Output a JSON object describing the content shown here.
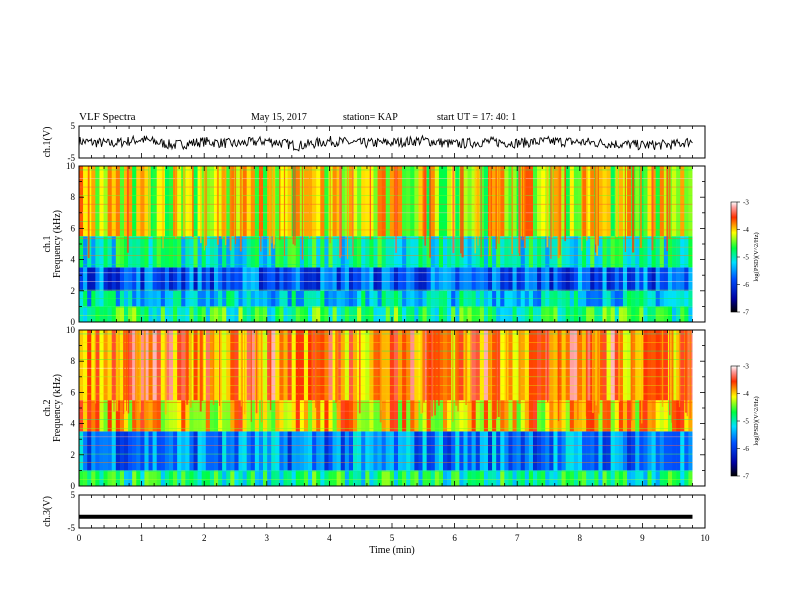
{
  "header": {
    "title": "VLF Spectra",
    "date": "May 15, 2017",
    "station": "station= KAP",
    "start": "start  UT  =   17: 40: 1"
  },
  "chart_data": [
    {
      "type": "line",
      "panel": "ch1-voltage",
      "ylabel": "ch.1(V)",
      "ylim": [
        -5,
        5
      ],
      "yticks": [
        "5",
        "-5"
      ],
      "xlim": [
        0,
        10
      ],
      "series": [
        {
          "color": "#000000",
          "x": [
            0,
            0.5,
            1,
            1.5,
            2,
            2.5,
            3,
            3.5,
            4,
            4.5,
            5,
            5.5,
            6,
            6.5,
            7,
            7.5,
            8,
            8.5,
            9,
            9.5,
            9.8
          ],
          "values": [
            0.2,
            -0.5,
            0.8,
            -1.0,
            0.1,
            -0.6,
            0.4,
            -1.2,
            0.3,
            -0.4,
            -0.2,
            0.5,
            -0.7,
            0.1,
            -0.3,
            0.2,
            0.0,
            -0.5,
            -1.0,
            -0.8,
            0.3
          ]
        }
      ]
    },
    {
      "type": "heatmap",
      "panel": "ch1-spectrogram",
      "ylabel": "ch.1\nFrequency (kHz)",
      "ylim": [
        0,
        10
      ],
      "yticks": [
        "0",
        "2",
        "4",
        "6",
        "8",
        "10"
      ],
      "xlim": [
        0,
        9.8
      ],
      "colorbar": {
        "label": "log(PSD)(V^2/Hz)",
        "range": [
          -7,
          -3
        ],
        "ticks": [
          "-3",
          "-4",
          "-5",
          "-6",
          "-7"
        ]
      },
      "bands_kHz": [
        {
          "from": 0,
          "to": 1,
          "level": -4.8
        },
        {
          "from": 1,
          "to": 2,
          "level": -5.2
        },
        {
          "from": 2,
          "to": 3.5,
          "level": -5.8
        },
        {
          "from": 3.5,
          "to": 5.5,
          "level": -5.0
        },
        {
          "from": 5.5,
          "to": 10,
          "level": -4.2
        }
      ]
    },
    {
      "type": "heatmap",
      "panel": "ch2-spectrogram",
      "ylabel": "ch.2\nFrequency (kHz)",
      "ylim": [
        0,
        10
      ],
      "yticks": [
        "0",
        "2",
        "4",
        "6",
        "8",
        "10"
      ],
      "xlim": [
        0,
        9.8
      ],
      "colorbar": {
        "label": "log(PSD)(V^2/Hz)",
        "range": [
          -7,
          -3
        ],
        "ticks": [
          "-3",
          "-4",
          "-5",
          "-6",
          "-7"
        ]
      },
      "bands_kHz": [
        {
          "from": 0,
          "to": 1,
          "level": -4.9
        },
        {
          "from": 1,
          "to": 3.5,
          "level": -5.6
        },
        {
          "from": 3.5,
          "to": 5.5,
          "level": -4.0
        },
        {
          "from": 5.5,
          "to": 10,
          "level": -3.7
        }
      ]
    },
    {
      "type": "line",
      "panel": "ch3-voltage",
      "ylabel": "ch.3(V)",
      "ylim": [
        -5,
        5
      ],
      "yticks": [
        "5",
        "-5"
      ],
      "xlim": [
        0,
        10
      ],
      "xlabel": "Time (min)",
      "xticks": [
        "0",
        "1",
        "2",
        "3",
        "4",
        "5",
        "6",
        "7",
        "8",
        "9",
        "10"
      ],
      "series": [
        {
          "color": "#000000",
          "x": [
            0,
            9.8
          ],
          "values": [
            -1.6,
            -1.6
          ]
        }
      ]
    }
  ]
}
